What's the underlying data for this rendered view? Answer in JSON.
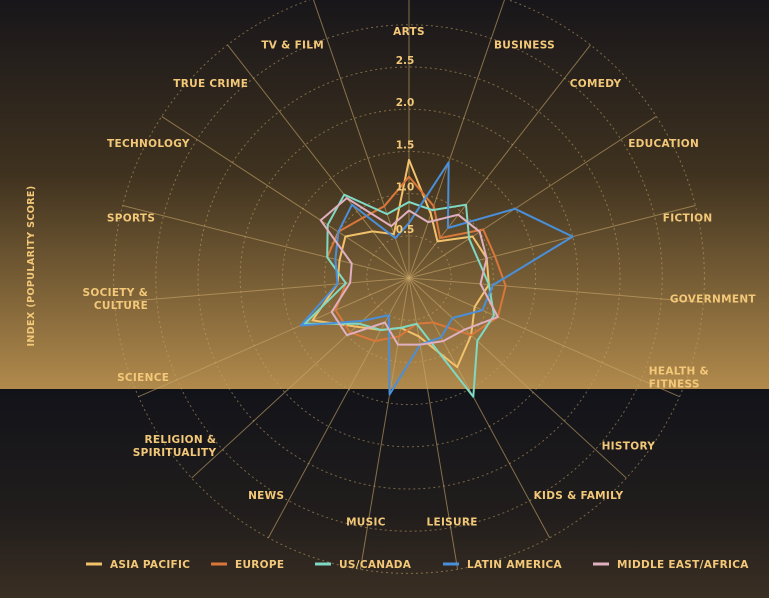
{
  "chart_data": {
    "type": "radar",
    "ylabel": "INDEX (POPULARITY SCORE)",
    "rlim": [
      0,
      2.5
    ],
    "r_ticks": [
      {
        "value": 0.5,
        "label": "0.5"
      },
      {
        "value": 1.0,
        "label": "1.0"
      },
      {
        "value": 1.5,
        "label": "1.5"
      },
      {
        "value": 2.0,
        "label": "2.0"
      },
      {
        "value": 2.5,
        "label": "2.5"
      }
    ],
    "categories": [
      [
        "ARTS"
      ],
      [
        "BUSINESS"
      ],
      [
        "COMEDY"
      ],
      [
        "EDUCATION"
      ],
      [
        "FICTION"
      ],
      [
        "GOVERNMENT"
      ],
      [
        "HEALTH &",
        "FITNESS"
      ],
      [
        "HISTORY"
      ],
      [
        "KIDS & FAMILY"
      ],
      [
        "LEISURE"
      ],
      [
        "MUSIC"
      ],
      [
        "NEWS"
      ],
      [
        "RELIGION &",
        "SPIRITUALITY"
      ],
      [
        "SCIENCE"
      ],
      [
        "SOCIETY &",
        "CULTURE"
      ],
      [
        "SPORTS"
      ],
      [
        "TECHNOLOGY"
      ],
      [
        "TRUE CRIME"
      ],
      [
        "TV & FILM"
      ]
    ],
    "series": [
      {
        "name": "ASIA PACIFIC",
        "color": "#f2c16b",
        "values": [
          1.4,
          0.8,
          0.55,
          0.9,
          0.95,
          0.95,
          0.85,
          1.0,
          1.2,
          0.7,
          0.6,
          0.7,
          0.85,
          1.25,
          0.85,
          0.85,
          0.9,
          0.7,
          0.55
        ]
      },
      {
        "name": "EUROPE",
        "color": "#d9773a",
        "values": [
          1.2,
          0.9,
          0.6,
          1.05,
          1.05,
          1.15,
          1.15,
          1.0,
          0.6,
          0.55,
          0.7,
          0.85,
          0.95,
          0.95,
          0.75,
          1.0,
          1.0,
          0.9,
          0.9
        ]
      },
      {
        "name": "US/CANADA",
        "color": "#7fd9c4",
        "values": [
          0.9,
          0.85,
          1.1,
          0.85,
          0.85,
          0.95,
          1.1,
          1.1,
          1.6,
          0.55,
          0.6,
          0.7,
          0.8,
          1.35,
          0.75,
          1.0,
          1.15,
          1.25,
          0.8
        ]
      },
      {
        "name": "LATIN AMERICA",
        "color": "#4a8fd9",
        "values": [
          0.65,
          1.45,
          0.75,
          1.5,
          2.0,
          1.0,
          0.95,
          0.7,
          0.8,
          0.8,
          1.4,
          0.5,
          0.75,
          1.4,
          0.85,
          0.9,
          1.0,
          1.1,
          0.5
        ]
      },
      {
        "name": "MIDDLE EAST/AFRICA",
        "color": "#dfb0c0",
        "values": [
          0.8,
          0.7,
          0.95,
          1.0,
          0.95,
          0.85,
          1.15,
          0.9,
          0.85,
          0.8,
          0.8,
          0.6,
          1.0,
          1.0,
          0.7,
          0.7,
          1.25,
          1.2,
          0.65
        ]
      }
    ]
  },
  "legend": {
    "items": [
      {
        "label": "ASIA PACIFIC",
        "color": "#f2c16b"
      },
      {
        "label": "EUROPE",
        "color": "#d9773a"
      },
      {
        "label": "US/CANADA",
        "color": "#7fd9c4"
      },
      {
        "label": "LATIN AMERICA",
        "color": "#4a8fd9"
      },
      {
        "label": "MIDDLE EAST/AFRICA",
        "color": "#dfb0c0"
      }
    ]
  }
}
